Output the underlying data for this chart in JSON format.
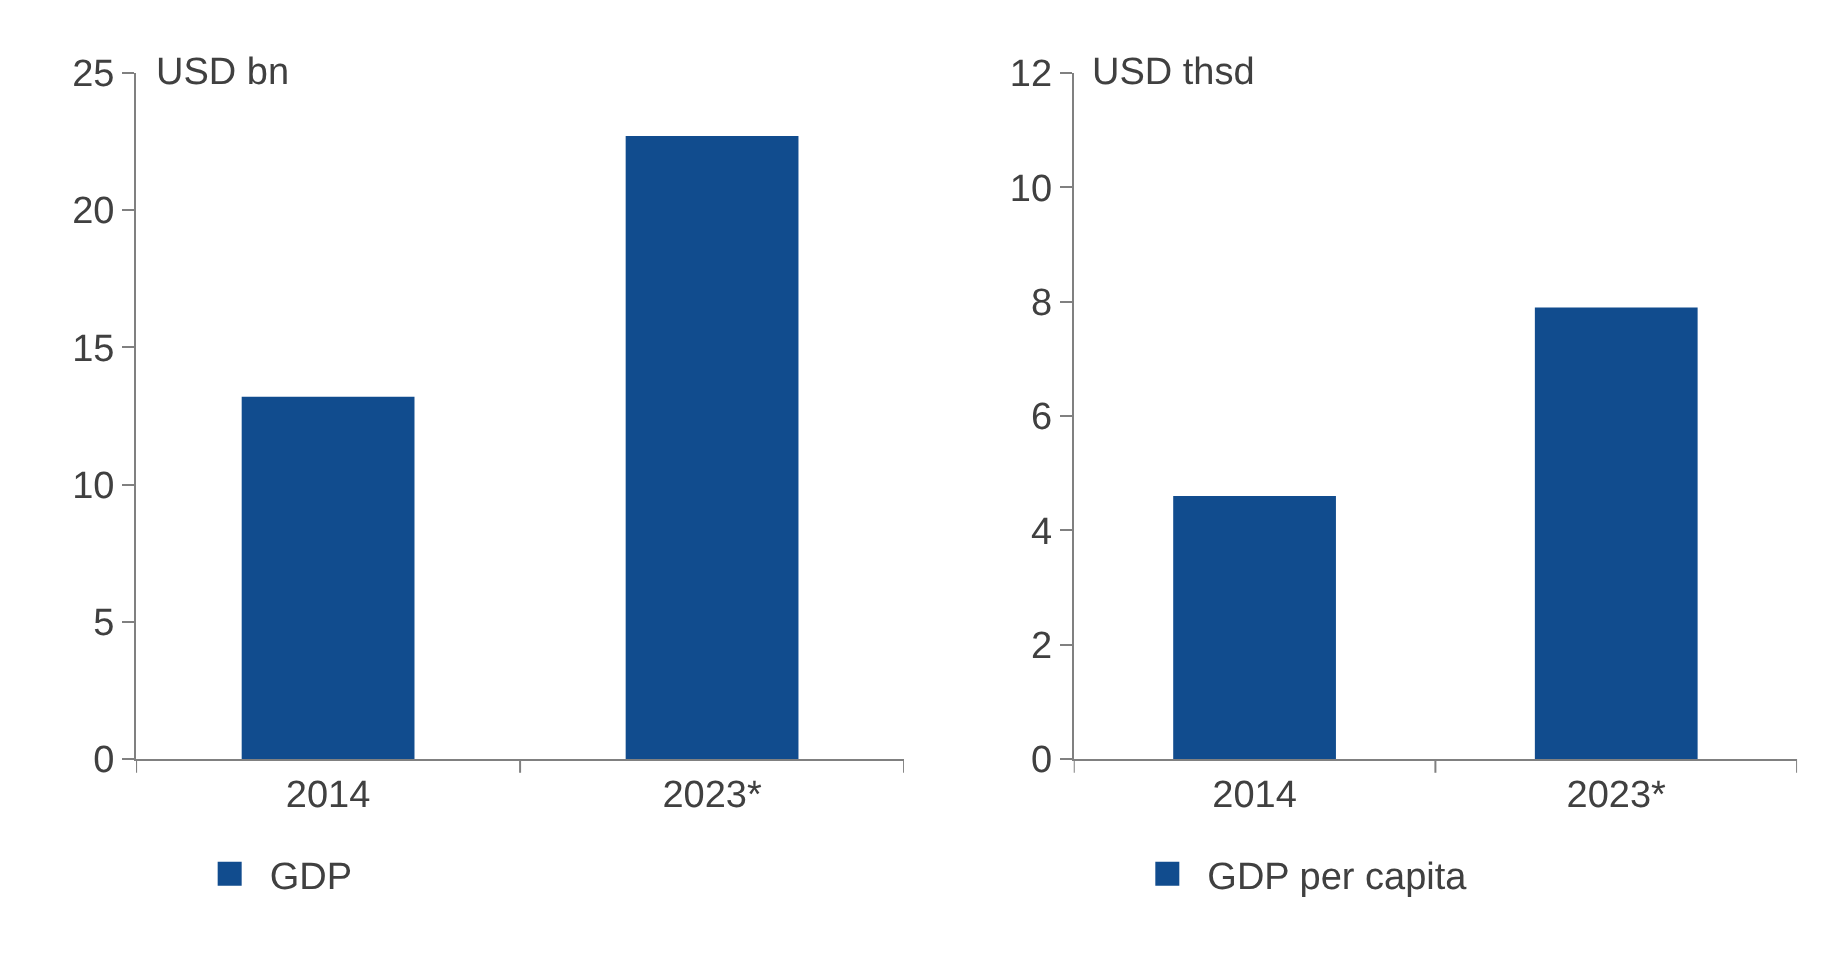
{
  "chart_data": [
    {
      "type": "bar",
      "ylabel": "USD bn",
      "categories": [
        "2014",
        "2023*"
      ],
      "series": [
        {
          "name": "GDP",
          "color": "#114c8e",
          "values": [
            13.2,
            22.7
          ]
        }
      ],
      "ylim": [
        0,
        25
      ],
      "yticks": [
        0,
        5,
        10,
        15,
        20,
        25
      ],
      "legend": "bottom"
    },
    {
      "type": "bar",
      "ylabel": "USD thsd",
      "categories": [
        "2014",
        "2023*"
      ],
      "series": [
        {
          "name": "GDP per capita",
          "color": "#114c8e",
          "values": [
            4.6,
            7.9
          ]
        }
      ],
      "ylim": [
        0,
        12
      ],
      "yticks": [
        0,
        2,
        4,
        6,
        8,
        10,
        12
      ],
      "legend": "bottom"
    }
  ]
}
